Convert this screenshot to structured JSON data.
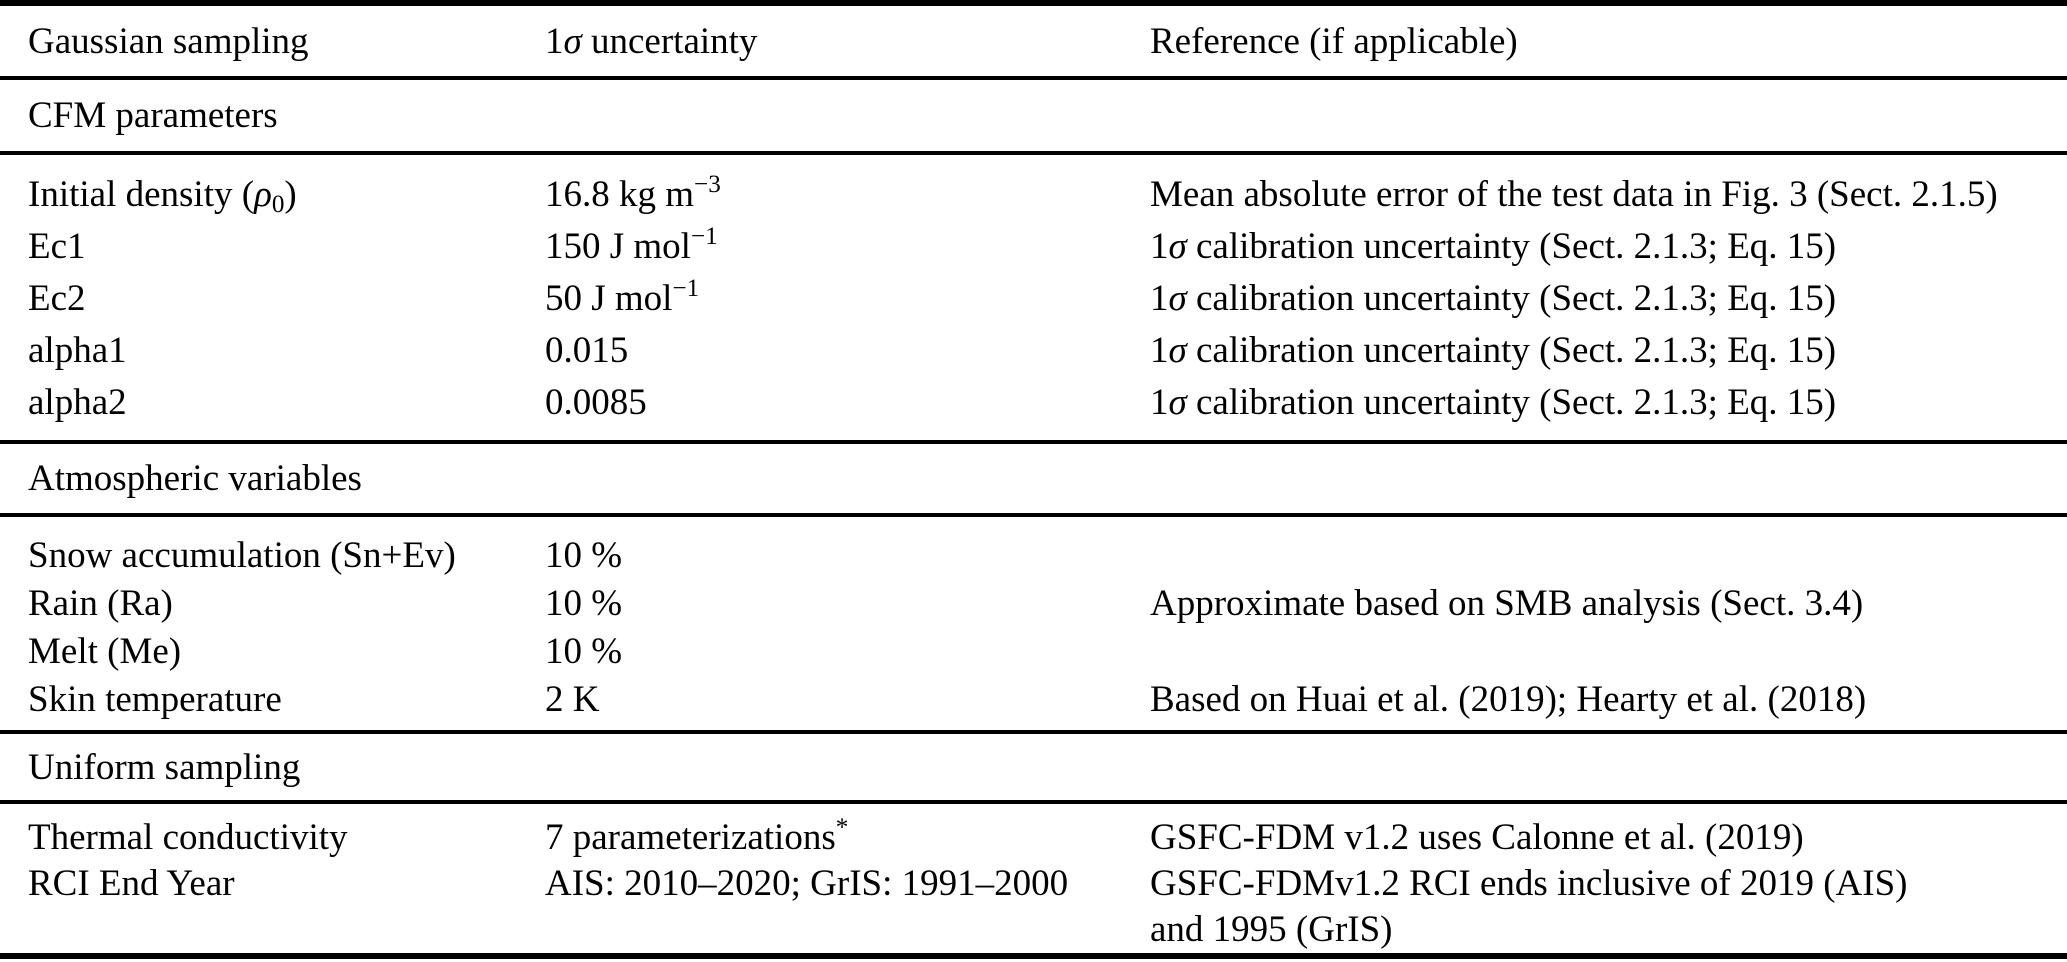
{
  "table": {
    "header": {
      "gaussian_sampling": "Gaussian sampling",
      "uncertainty_html": "1<i>σ</i> uncertainty",
      "reference": "Reference (if applicable)"
    },
    "sections": [
      {
        "title": "CFM parameters",
        "rows": [
          {
            "param": "Initial density (<i>ρ</i><sub>0</sub>)",
            "value": "16.8 kg m<sup>−3</sup>",
            "ref": "Mean absolute error of the test data in Fig. 3 (Sect. 2.1.5)"
          },
          {
            "param": "Ec1",
            "value": "150 J mol<sup>−1</sup>",
            "ref": "1<i>σ</i> calibration uncertainty (Sect. 2.1.3; Eq. 15)"
          },
          {
            "param": "Ec2",
            "value": "50 J mol<sup>−1</sup>",
            "ref": "1<i>σ</i> calibration uncertainty (Sect. 2.1.3; Eq. 15)"
          },
          {
            "param": "alpha1",
            "value": "0.015",
            "ref": "1<i>σ</i> calibration uncertainty (Sect. 2.1.3; Eq. 15)"
          },
          {
            "param": "alpha2",
            "value": "0.0085",
            "ref": "1<i>σ</i> calibration uncertainty (Sect. 2.1.3; Eq. 15)"
          }
        ]
      },
      {
        "title": "Atmospheric variables",
        "rows": [
          {
            "param": "Snow accumulation (Sn+Ev)",
            "value": "10 %",
            "ref": ""
          },
          {
            "param": "Rain (Ra)",
            "value": "10 %",
            "ref": "Approximate based on SMB analysis (Sect. 3.4)"
          },
          {
            "param": "Melt (Me)",
            "value": "10 %",
            "ref": ""
          },
          {
            "param": "Skin temperature",
            "value": "2 K",
            "ref": "Based on Huai et al. (2019); Hearty et al. (2018)"
          }
        ]
      },
      {
        "title": "Uniform sampling",
        "rows": [
          {
            "param": "Thermal conductivity",
            "value": "7 parameterizations<sup>*</sup>",
            "ref": "GSFC-FDM v1.2 uses Calonne et al. (2019)"
          },
          {
            "param": "RCI End Year",
            "value": "AIS: 2010–2020; GrIS: 1991–2000",
            "ref": "GSFC-FDMv1.2 RCI ends inclusive of 2019 (AIS)<br>and 1995 (GrIS)"
          }
        ]
      }
    ]
  }
}
